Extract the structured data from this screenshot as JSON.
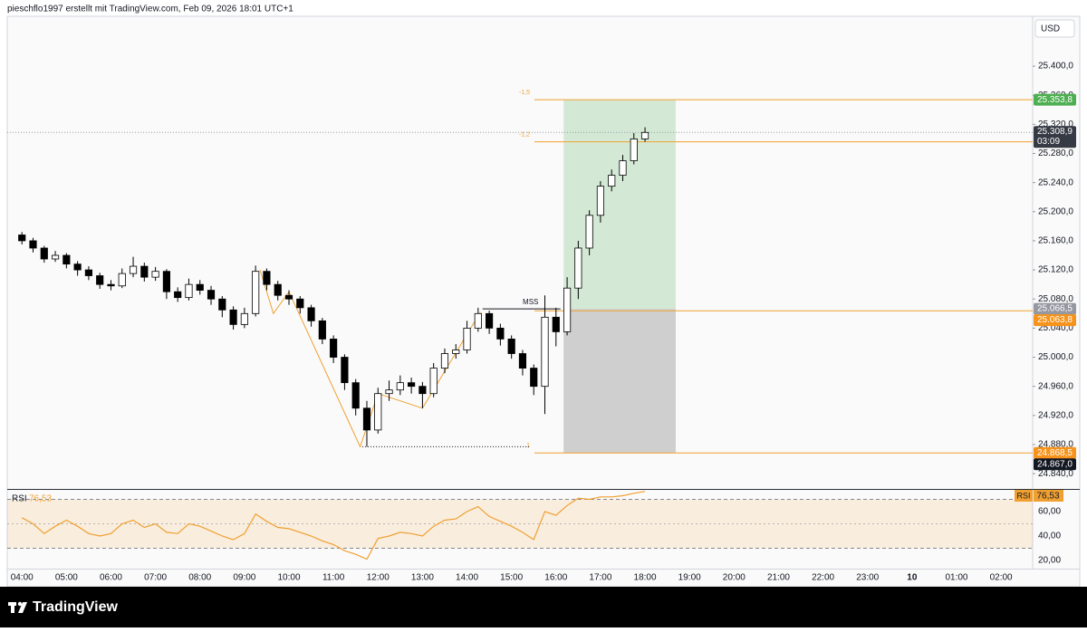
{
  "header": {
    "caption": "pieschflo1997 erstellt mit TradingView.com, Feb 09, 2026 18:01 UTC+1"
  },
  "footer": {
    "brand": "TradingView"
  },
  "chart_data": {
    "type": "candlestick",
    "currency": "USD",
    "up_color": "#ffffff",
    "down_color": "#000000",
    "x": [
      4,
      4.25,
      4.5,
      4.75,
      5,
      5.25,
      5.5,
      5.75,
      6,
      6.25,
      6.5,
      6.75,
      7,
      7.25,
      7.5,
      7.75,
      8,
      8.25,
      8.5,
      8.75,
      9,
      9.25,
      9.5,
      9.75,
      10,
      10.25,
      10.5,
      10.75,
      11,
      11.25,
      11.5,
      11.75,
      12,
      12.25,
      12.5,
      12.75,
      13,
      13.25,
      13.5,
      13.75,
      14,
      14.25,
      14.5,
      14.75,
      15,
      15.25,
      15.5,
      15.75,
      16,
      16.25,
      16.5,
      16.75,
      17,
      17.25,
      17.5,
      17.75,
      18
    ],
    "open": [
      25168,
      25160,
      25150,
      25135,
      25140,
      25128,
      25120,
      25112,
      25100,
      25098,
      25115,
      25125,
      25110,
      25118,
      25090,
      25082,
      25100,
      25092,
      25080,
      25065,
      25045,
      25060,
      25118,
      25100,
      25085,
      25080,
      25068,
      25050,
      25025,
      25000,
      24965,
      24930,
      24900,
      24950,
      24955,
      24965,
      24960,
      24950,
      24985,
      25005,
      25010,
      25040,
      25060,
      25040,
      25025,
      25005,
      24985,
      24960,
      25055,
      25035,
      25095,
      25150,
      25195,
      25235,
      25250,
      25270,
      25300
    ],
    "high": [
      25172,
      25164,
      25153,
      25146,
      25143,
      25132,
      25125,
      25116,
      25106,
      25122,
      25138,
      25130,
      25124,
      25121,
      25096,
      25108,
      25106,
      25098,
      25084,
      25070,
      25068,
      25126,
      25122,
      25105,
      25092,
      25084,
      25072,
      25054,
      25030,
      25004,
      24970,
      24940,
      24958,
      24968,
      24975,
      24972,
      24966,
      24992,
      25012,
      25018,
      25050,
      25068,
      25064,
      25046,
      25030,
      25010,
      24990,
      25085,
      25068,
      25110,
      25160,
      25202,
      25242,
      25258,
      25278,
      25308,
      25316
    ],
    "low": [
      25155,
      25144,
      25130,
      25131,
      25122,
      25112,
      25106,
      25094,
      25092,
      25095,
      25110,
      25104,
      25105,
      25080,
      25076,
      25078,
      25086,
      25072,
      25055,
      25038,
      25040,
      25056,
      25092,
      25078,
      25072,
      25060,
      25042,
      25018,
      24992,
      24955,
      24920,
      24877,
      24895,
      24940,
      24948,
      24950,
      24930,
      24945,
      24978,
      24998,
      25005,
      25035,
      25032,
      25016,
      24998,
      24975,
      24948,
      24922,
      25015,
      25030,
      25080,
      25140,
      25185,
      25228,
      25242,
      25265,
      25296
    ],
    "close": [
      25160,
      25150,
      25135,
      25140,
      25128,
      25120,
      25112,
      25100,
      25098,
      25115,
      25125,
      25110,
      25118,
      25090,
      25082,
      25100,
      25092,
      25080,
      25065,
      25045,
      25060,
      25118,
      25100,
      25085,
      25080,
      25068,
      25050,
      25025,
      25000,
      24965,
      24930,
      24900,
      24950,
      24955,
      24965,
      24960,
      24950,
      24985,
      25005,
      25010,
      25040,
      25060,
      25040,
      25025,
      25005,
      24985,
      24960,
      25055,
      25035,
      25095,
      25150,
      25195,
      25235,
      25250,
      25270,
      25300,
      25308.9
    ],
    "xlim": [
      3.67,
      26.71
    ],
    "xticks": [
      {
        "value": 4,
        "label": "04:00"
      },
      {
        "value": 5,
        "label": "05:00"
      },
      {
        "value": 6,
        "label": "06:00"
      },
      {
        "value": 7,
        "label": "07:00"
      },
      {
        "value": 8,
        "label": "08:00"
      },
      {
        "value": 9,
        "label": "09:00"
      },
      {
        "value": 10,
        "label": "10:00"
      },
      {
        "value": 11,
        "label": "11:00"
      },
      {
        "value": 12,
        "label": "12:00"
      },
      {
        "value": 13,
        "label": "13:00"
      },
      {
        "value": 14,
        "label": "14:00"
      },
      {
        "value": 15,
        "label": "15:00"
      },
      {
        "value": 16,
        "label": "16:00"
      },
      {
        "value": 17,
        "label": "17:00"
      },
      {
        "value": 18,
        "label": "18:00"
      },
      {
        "value": 19,
        "label": "19:00"
      },
      {
        "value": 20,
        "label": "20:00"
      },
      {
        "value": 21,
        "label": "21:00"
      },
      {
        "value": 22,
        "label": "22:00"
      },
      {
        "value": 23,
        "label": "23:00"
      },
      {
        "value": 24,
        "label": "10"
      },
      {
        "value": 25,
        "label": "01:00"
      },
      {
        "value": 26,
        "label": "02:00"
      }
    ],
    "ylim": [
      24819,
      25466
    ],
    "yticks": [
      {
        "value": 24840,
        "label": "24.840,0"
      },
      {
        "value": 24880,
        "label": "24.880,0"
      },
      {
        "value": 24920,
        "label": "24.920,0"
      },
      {
        "value": 24960,
        "label": "24.960,0"
      },
      {
        "value": 25000,
        "label": "25.000,0"
      },
      {
        "value": 25040,
        "label": "25.040,0"
      },
      {
        "value": 25080,
        "label": "25.080,0"
      },
      {
        "value": 25120,
        "label": "25.120,0"
      },
      {
        "value": 25160,
        "label": "25.160,0"
      },
      {
        "value": 25200,
        "label": "25.200,0"
      },
      {
        "value": 25240,
        "label": "25.240,0"
      },
      {
        "value": 25280,
        "label": "25.280,0"
      },
      {
        "value": 25320,
        "label": "25.320,0"
      },
      {
        "value": 25360,
        "label": "25.360,0"
      },
      {
        "value": 25400,
        "label": "25.400,0"
      }
    ],
    "last_price": {
      "value": 25308.9,
      "label": "25.308,9",
      "countdown": "03:09",
      "color": "#363a45"
    },
    "price_tags": [
      {
        "value": 25353.8,
        "label": "25.353,8",
        "color": "#4caf50"
      },
      {
        "value": 25066.5,
        "label": "25.066,5",
        "color": "#9598a1"
      },
      {
        "value": 25063.8,
        "label": "25.063,8",
        "color": "#f7931a"
      },
      {
        "value": 24868.5,
        "label": "24.868,5",
        "color": "#f7931a"
      },
      {
        "value": 24867.0,
        "label": "24.867,0",
        "color": "#131722"
      }
    ],
    "fib_color": "#f0a030",
    "fib_levels": [
      {
        "value": 25353.8,
        "label": "-1,5"
      },
      {
        "value": 25296,
        "label": "-1,2"
      },
      {
        "value": 24868.5,
        "label": "1"
      }
    ],
    "position": {
      "x": [
        16.17,
        18.69
      ],
      "target": 25353.8,
      "entry": 25066.5,
      "stop": 24868.5
    },
    "mss": {
      "label": "MSS",
      "value": 25066.5,
      "x": [
        14.35,
        16.1
      ]
    },
    "swing_low": {
      "value": 24877,
      "x": [
        11.65,
        15.4
      ]
    },
    "zigzag": {
      "x": [
        9.35,
        9.65,
        10.0,
        11.6,
        12.0,
        13.0,
        14.3
      ],
      "y": [
        25120,
        25060,
        25090,
        24877,
        24950,
        24930,
        25062
      ]
    },
    "rsi": {
      "title": "RSI",
      "color": "#f0a030",
      "values": [
        55,
        50,
        42,
        48,
        53,
        48,
        42,
        40,
        42,
        50,
        53,
        47,
        50,
        43,
        42,
        50,
        48,
        44,
        40,
        37,
        42,
        58,
        52,
        47,
        46,
        43,
        40,
        36,
        33,
        28,
        25,
        21,
        38,
        40,
        43,
        42,
        40,
        48,
        53,
        54,
        60,
        64,
        56,
        52,
        48,
        43,
        37,
        60,
        57,
        65,
        71,
        70,
        72,
        72,
        73,
        75,
        76.53
      ],
      "value_label": "76,53",
      "ylim": [
        13.3,
        77.8
      ],
      "yticks": [
        {
          "value": 60,
          "label": "60,00"
        },
        {
          "value": 40,
          "label": "40,00"
        },
        {
          "value": 20,
          "label": "20,00"
        }
      ],
      "bands": [
        70,
        50,
        30
      ]
    }
  }
}
